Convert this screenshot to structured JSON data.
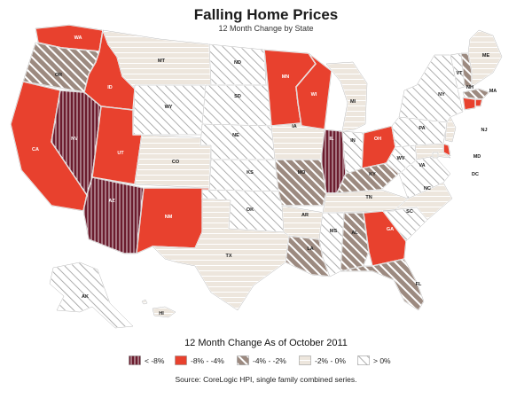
{
  "title": "Falling Home Prices",
  "subtitle": "12 Month Change by State",
  "legend_title": "12 Month Change As of October 2011",
  "source": "Source: CoreLogic HPI,  single family combined series.",
  "legend": [
    {
      "key": "lt8",
      "label": "< -8%"
    },
    {
      "key": "m8to4",
      "label": "-8% - -4%"
    },
    {
      "key": "m4to2",
      "label": "-4% - -2%"
    },
    {
      "key": "m2to0",
      "label": "-2% - 0%"
    },
    {
      "key": "gt0",
      "label": "> 0%"
    }
  ],
  "colors": {
    "lt8": "#6b1c2e",
    "m8to4": "#e8412e",
    "m4to2": "#9c8a80",
    "m2to0": "#ede6dd",
    "gt0": "#ffffff",
    "border": "#ffffff",
    "outline": "#888888"
  },
  "states": {
    "WA": "m8to4",
    "OR": "m4to2",
    "CA": "m8to4",
    "NV": "lt8",
    "ID": "m8to4",
    "MT": "m2to0",
    "WY": "gt0",
    "UT": "m8to4",
    "AZ": "lt8",
    "CO": "m2to0",
    "NM": "m8to4",
    "ND": "gt0",
    "SD": "gt0",
    "NE": "gt0",
    "KS": "gt0",
    "OK": "gt0",
    "TX": "m2to0",
    "MN": "m8to4",
    "IA": "m2to0",
    "MO": "m4to2",
    "AR": "m2to0",
    "LA": "m4to2",
    "WI": "m8to4",
    "IL": "lt8",
    "MI": "m2to0",
    "IN": "gt0",
    "OH": "m8to4",
    "KY": "m4to2",
    "TN": "m2to0",
    "MS": "gt0",
    "AL": "m4to2",
    "GA": "m8to4",
    "FL": "m4to2",
    "SC": "gt0",
    "NC": "m2to0",
    "VA": "gt0",
    "WV": "gt0",
    "PA": "gt0",
    "NY": "gt0",
    "VT": "gt0",
    "NH": "m4to2",
    "ME": "m2to0",
    "MA": "m4to2",
    "RI": "m8to4",
    "CT": "m8to4",
    "NJ": "m2to0",
    "DE": "m8to4",
    "MD": "m2to0",
    "DC": "m2to0",
    "AK": "gt0",
    "HI": "m2to0"
  }
}
